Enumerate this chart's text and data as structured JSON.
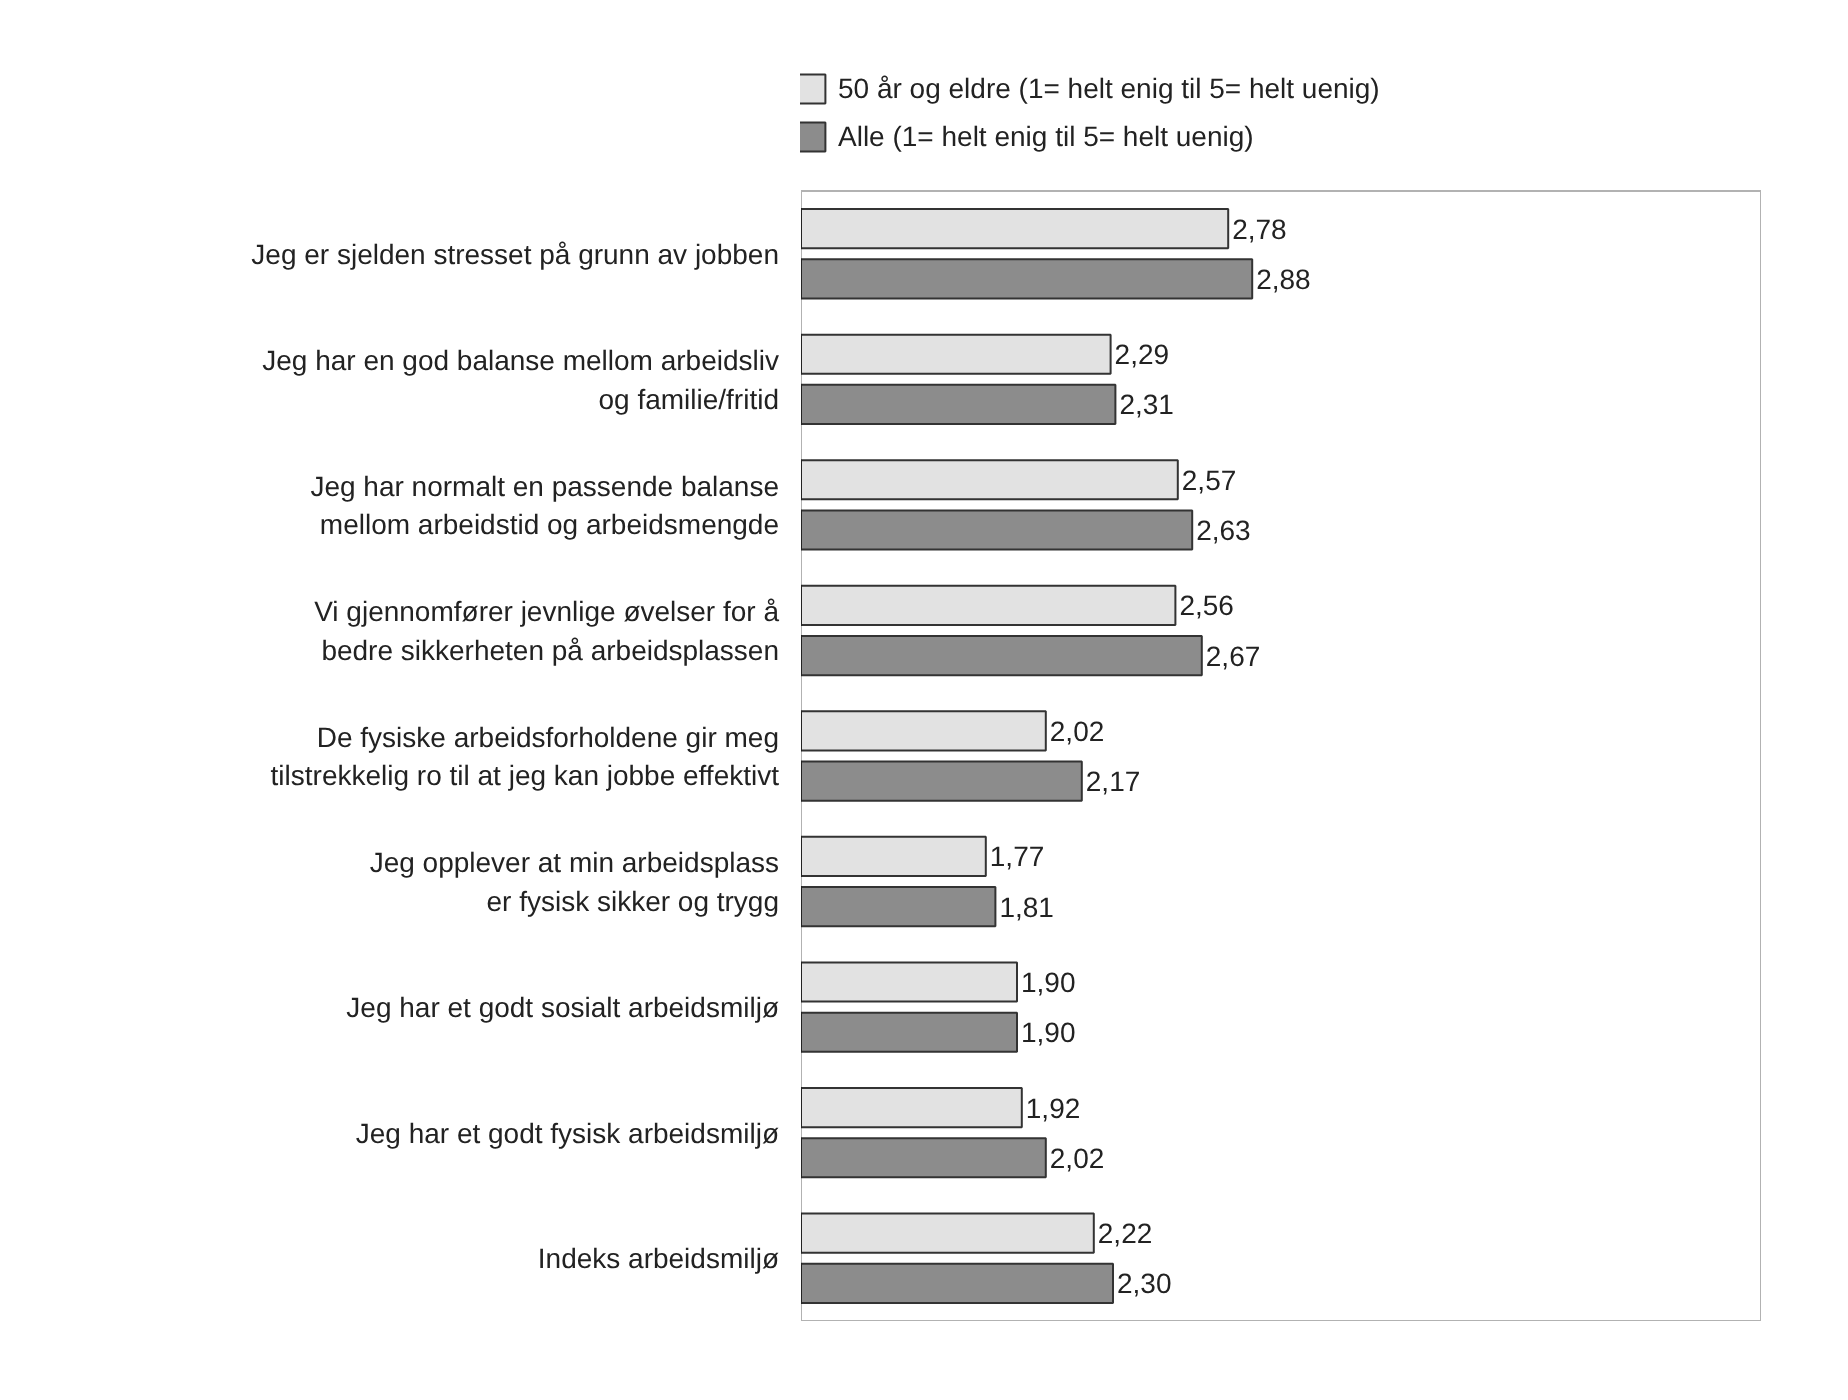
{
  "chart_data": {
    "type": "bar",
    "orientation": "horizontal",
    "legend": "top",
    "tick_labels": "y",
    "grid": false,
    "xlim": [
      1,
      5
    ],
    "categories": [
      "Jeg er sjelden stresset på grunn av jobben",
      "Jeg har en god balanse mellom arbeidsliv\nog familie/fritid",
      "Jeg har normalt en passende balanse\nmellom arbeidstid og arbeidsmengde",
      "Vi gjennomfører jevnlige øvelser for å\nbedre sikkerheten på arbeidsplassen",
      "De fysiske arbeidsforholdene gir meg\ntilstrekkelig ro til at jeg kan jobbe effektivt",
      "Jeg opplever at min arbeidsplass\ner fysisk sikker og trygg",
      "Jeg har et godt sosialt arbeidsmiljø",
      "Jeg har et godt fysisk arbeidsmiljø",
      "Indeks arbeidsmiljø"
    ],
    "series": [
      {
        "name": "50 år og eldre (1= helt enig til 5= helt uenig)",
        "color": "#e2e2e2",
        "values": [
          2.78,
          2.29,
          2.57,
          2.56,
          2.02,
          1.77,
          1.9,
          1.92,
          2.22
        ],
        "value_labels": [
          "2,78",
          "2,29",
          "2,57",
          "2,56",
          "2,02",
          "1,77",
          "1,90",
          "1,92",
          "2,22"
        ]
      },
      {
        "name": "Alle (1= helt enig til 5= helt uenig)",
        "color": "#8c8c8c",
        "values": [
          2.88,
          2.31,
          2.63,
          2.67,
          2.17,
          1.81,
          1.9,
          2.02,
          2.3
        ],
        "value_labels": [
          "2,88",
          "2,31",
          "2,63",
          "2,67",
          "2,17",
          "1,81",
          "1,90",
          "2,02",
          "2,30"
        ]
      }
    ]
  }
}
